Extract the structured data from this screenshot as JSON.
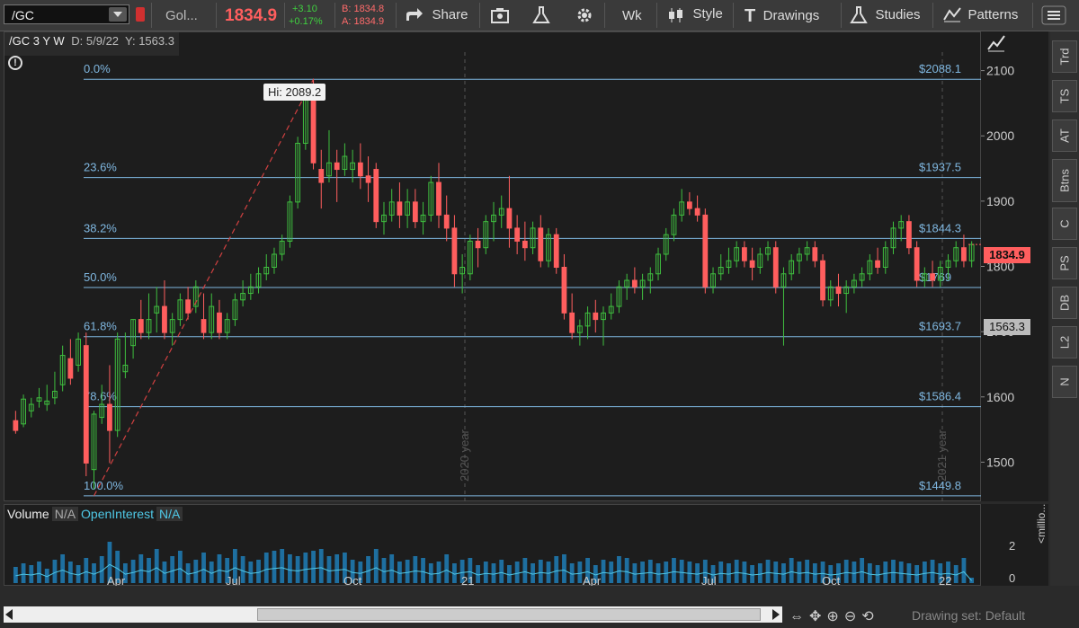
{
  "toolbar": {
    "symbol": "/GC",
    "name": "Gol...",
    "last": "1834.9",
    "change": "+3.10",
    "change_pct": "+0.17%",
    "bid": "B: 1834.8",
    "ask": "A: 1834.9",
    "share": "Share",
    "period": "Wk",
    "style": "Style",
    "drawings": "Drawings",
    "studies": "Studies",
    "patterns": "Patterns"
  },
  "chart": {
    "header": "/GC 3 Y W",
    "header_info": "D: 5/9/22  Y: 1563.3",
    "hi_label": "Hi: 2089.2",
    "price_tag": "1834.9",
    "cursor_tag": "1563.3",
    "year_labels": [
      "2020 year",
      "2021 year"
    ],
    "x_ticks": [
      "Apr",
      "Jul",
      "Oct",
      "21",
      "Apr",
      "Jul",
      "Oct",
      "22"
    ],
    "y_ticks": [
      "2100",
      "2000",
      "1900",
      "1800",
      "1700",
      "1600",
      "1500"
    ],
    "fib_levels": [
      {
        "pct": "0.0%",
        "price": "$2088.1"
      },
      {
        "pct": "23.6%",
        "price": "$1937.5"
      },
      {
        "pct": "38.2%",
        "price": "$1844.3"
      },
      {
        "pct": "50.0%",
        "price": "$1769"
      },
      {
        "pct": "61.8%",
        "price": "$1693.7"
      },
      {
        "pct": "78.6%",
        "price": "$1586.4"
      },
      {
        "pct": "100.0%",
        "price": "$1449.8"
      }
    ],
    "fib_values": [
      2088.1,
      1937.5,
      1844.3,
      1769,
      1693.7,
      1586.4,
      1449.8
    ],
    "price_range": [
      1440,
      2160
    ],
    "colors": {
      "up": "#3fbf3f",
      "down": "#ff5e5e",
      "fib": "#7fb7e0",
      "accent": "#ff5e5e"
    }
  },
  "volume": {
    "label1": "Volume",
    "label1_val": "N/A",
    "label2": "OpenInterest",
    "label2_val": "N/A",
    "y_ticks": [
      "2",
      "0"
    ],
    "unit": "<millio..."
  },
  "right_tabs": [
    "Trd",
    "TS",
    "AT",
    "Btns",
    "C",
    "PS",
    "DB",
    "L2",
    "N"
  ],
  "bottom": {
    "drawing_set": "Drawing set: Default"
  },
  "chart_data": {
    "type": "candlestick",
    "ylim": [
      1440,
      2160
    ],
    "candles": [
      [
        1565,
        1580,
        1545,
        1550
      ],
      [
        1560,
        1605,
        1555,
        1598
      ],
      [
        1580,
        1600,
        1570,
        1590
      ],
      [
        1595,
        1615,
        1585,
        1600
      ],
      [
        1590,
        1620,
        1580,
        1595
      ],
      [
        1600,
        1640,
        1590,
        1610
      ],
      [
        1620,
        1680,
        1610,
        1665
      ],
      [
        1660,
        1690,
        1620,
        1630
      ],
      [
        1650,
        1700,
        1640,
        1690
      ],
      [
        1680,
        1700,
        1480,
        1500
      ],
      [
        1490,
        1580,
        1460,
        1575
      ],
      [
        1570,
        1620,
        1560,
        1590
      ],
      [
        1590,
        1650,
        1500,
        1550
      ],
      [
        1550,
        1700,
        1540,
        1690
      ],
      [
        1640,
        1700,
        1630,
        1650
      ],
      [
        1680,
        1720,
        1660,
        1720
      ],
      [
        1720,
        1750,
        1690,
        1700
      ],
      [
        1700,
        1760,
        1690,
        1720
      ],
      [
        1730,
        1770,
        1700,
        1740
      ],
      [
        1740,
        1780,
        1690,
        1700
      ],
      [
        1700,
        1730,
        1680,
        1720
      ],
      [
        1720,
        1760,
        1710,
        1750
      ],
      [
        1750,
        1770,
        1720,
        1730
      ],
      [
        1740,
        1780,
        1730,
        1770
      ],
      [
        1720,
        1760,
        1690,
        1700
      ],
      [
        1700,
        1760,
        1690,
        1740
      ],
      [
        1730,
        1750,
        1690,
        1700
      ],
      [
        1700,
        1730,
        1690,
        1720
      ],
      [
        1720,
        1760,
        1710,
        1750
      ],
      [
        1750,
        1780,
        1740,
        1760
      ],
      [
        1760,
        1790,
        1750,
        1770
      ],
      [
        1770,
        1800,
        1760,
        1790
      ],
      [
        1790,
        1820,
        1780,
        1800
      ],
      [
        1800,
        1830,
        1790,
        1820
      ],
      [
        1820,
        1850,
        1810,
        1840
      ],
      [
        1840,
        1910,
        1830,
        1900
      ],
      [
        1900,
        2000,
        1890,
        1990
      ],
      [
        1990,
        2070,
        1980,
        2060
      ],
      [
        2060,
        2089,
        1950,
        1960
      ],
      [
        1950,
        1980,
        1890,
        1930
      ],
      [
        1940,
        2010,
        1930,
        1960
      ],
      [
        1960,
        1980,
        1900,
        1950
      ],
      [
        1950,
        1990,
        1940,
        1970
      ],
      [
        1950,
        1980,
        1930,
        1960
      ],
      [
        1960,
        1990,
        1920,
        1940
      ],
      [
        1940,
        1970,
        1900,
        1930
      ],
      [
        1950,
        1960,
        1860,
        1870
      ],
      [
        1870,
        1900,
        1850,
        1880
      ],
      [
        1880,
        1920,
        1870,
        1900
      ],
      [
        1900,
        1930,
        1860,
        1880
      ],
      [
        1880,
        1920,
        1860,
        1900
      ],
      [
        1900,
        1920,
        1860,
        1870
      ],
      [
        1870,
        1900,
        1850,
        1880
      ],
      [
        1880,
        1940,
        1870,
        1930
      ],
      [
        1930,
        1960,
        1860,
        1880
      ],
      [
        1880,
        1910,
        1840,
        1860
      ],
      [
        1860,
        1880,
        1770,
        1790
      ],
      [
        1790,
        1820,
        1760,
        1800
      ],
      [
        1790,
        1850,
        1780,
        1840
      ],
      [
        1840,
        1860,
        1800,
        1830
      ],
      [
        1830,
        1880,
        1820,
        1870
      ],
      [
        1870,
        1900,
        1840,
        1880
      ],
      [
        1880,
        1910,
        1860,
        1890
      ],
      [
        1890,
        1940,
        1830,
        1860
      ],
      [
        1860,
        1880,
        1820,
        1840
      ],
      [
        1840,
        1870,
        1810,
        1830
      ],
      [
        1830,
        1870,
        1820,
        1860
      ],
      [
        1860,
        1880,
        1800,
        1810
      ],
      [
        1810,
        1860,
        1800,
        1850
      ],
      [
        1850,
        1860,
        1790,
        1800
      ],
      [
        1800,
        1820,
        1720,
        1730
      ],
      [
        1730,
        1760,
        1690,
        1700
      ],
      [
        1700,
        1720,
        1680,
        1710
      ],
      [
        1710,
        1740,
        1690,
        1730
      ],
      [
        1730,
        1750,
        1700,
        1720
      ],
      [
        1720,
        1740,
        1680,
        1730
      ],
      [
        1730,
        1760,
        1720,
        1740
      ],
      [
        1740,
        1780,
        1730,
        1770
      ],
      [
        1770,
        1790,
        1750,
        1780
      ],
      [
        1780,
        1800,
        1760,
        1770
      ],
      [
        1770,
        1790,
        1750,
        1780
      ],
      [
        1780,
        1800,
        1760,
        1790
      ],
      [
        1790,
        1830,
        1780,
        1820
      ],
      [
        1820,
        1860,
        1810,
        1850
      ],
      [
        1850,
        1890,
        1840,
        1880
      ],
      [
        1880,
        1920,
        1870,
        1900
      ],
      [
        1900,
        1915,
        1880,
        1890
      ],
      [
        1890,
        1910,
        1870,
        1880
      ],
      [
        1880,
        1890,
        1760,
        1770
      ],
      [
        1770,
        1800,
        1760,
        1790
      ],
      [
        1790,
        1820,
        1780,
        1800
      ],
      [
        1800,
        1830,
        1790,
        1810
      ],
      [
        1810,
        1840,
        1800,
        1830
      ],
      [
        1830,
        1840,
        1800,
        1810
      ],
      [
        1810,
        1830,
        1780,
        1800
      ],
      [
        1800,
        1830,
        1790,
        1820
      ],
      [
        1820,
        1840,
        1810,
        1830
      ],
      [
        1830,
        1840,
        1760,
        1770
      ],
      [
        1770,
        1800,
        1680,
        1790
      ],
      [
        1790,
        1820,
        1780,
        1810
      ],
      [
        1810,
        1830,
        1790,
        1820
      ],
      [
        1820,
        1840,
        1810,
        1830
      ],
      [
        1830,
        1840,
        1800,
        1810
      ],
      [
        1810,
        1820,
        1740,
        1750
      ],
      [
        1750,
        1780,
        1740,
        1770
      ],
      [
        1770,
        1790,
        1740,
        1760
      ],
      [
        1760,
        1780,
        1730,
        1770
      ],
      [
        1770,
        1790,
        1760,
        1780
      ],
      [
        1780,
        1800,
        1770,
        1790
      ],
      [
        1790,
        1820,
        1780,
        1810
      ],
      [
        1810,
        1830,
        1790,
        1800
      ],
      [
        1800,
        1840,
        1790,
        1830
      ],
      [
        1830,
        1870,
        1820,
        1860
      ],
      [
        1860,
        1880,
        1840,
        1870
      ],
      [
        1870,
        1880,
        1820,
        1830
      ],
      [
        1830,
        1840,
        1770,
        1780
      ],
      [
        1780,
        1800,
        1770,
        1790
      ],
      [
        1790,
        1810,
        1770,
        1780
      ],
      [
        1780,
        1810,
        1770,
        1800
      ],
      [
        1800,
        1820,
        1780,
        1810
      ],
      [
        1810,
        1840,
        1800,
        1830
      ],
      [
        1830,
        1850,
        1800,
        1810
      ],
      [
        1810,
        1840,
        1800,
        1835
      ]
    ],
    "volume": [
      0.9,
      1.1,
      1.0,
      1.2,
      0.8,
      1.3,
      1.6,
      1.2,
      1.0,
      1.4,
      1.1,
      1.5,
      2.3,
      1.8,
      1.1,
      1.3,
      1.6,
      1.4,
      1.9,
      1.2,
      1.5,
      1.8,
      1.1,
      1.3,
      1.7,
      1.2,
      1.6,
      1.4,
      1.9,
      1.5,
      1.2,
      1.3,
      1.7,
      1.8,
      1.9,
      1.6,
      1.5,
      1.7,
      1.8,
      1.9,
      1.5,
      1.6,
      1.7,
      1.3,
      1.2,
      1.5,
      1.9,
      1.4,
      1.6,
      1.2,
      1.3,
      1.5,
      1.4,
      1.1,
      1.2,
      1.6,
      1.1,
      1.3,
      1.4,
      1.0,
      1.2,
      1.1,
      1.3,
      1.0,
      1.2,
      1.4,
      1.1,
      1.3,
      1.2,
      1.5,
      1.6,
      1.1,
      1.2,
      1.4,
      1.0,
      1.3,
      1.2,
      1.5,
      1.4,
      1.1,
      1.2,
      1.3,
      1.1,
      1.2,
      1.4,
      1.3,
      1.2,
      1.1,
      1.3,
      1.0,
      1.2,
      1.1,
      1.3,
      1.2,
      1.0,
      1.1,
      1.3,
      1.2,
      1.1,
      1.4,
      1.2,
      1.3,
      1.1,
      1.2,
      1.0,
      1.1,
      1.3,
      1.2,
      1.4,
      1.1,
      1.0,
      1.2,
      1.3,
      1.2,
      1.1,
      1.0,
      1.2,
      1.3,
      1.1,
      1.2,
      1.0,
      1.4,
      0.3
    ]
  }
}
